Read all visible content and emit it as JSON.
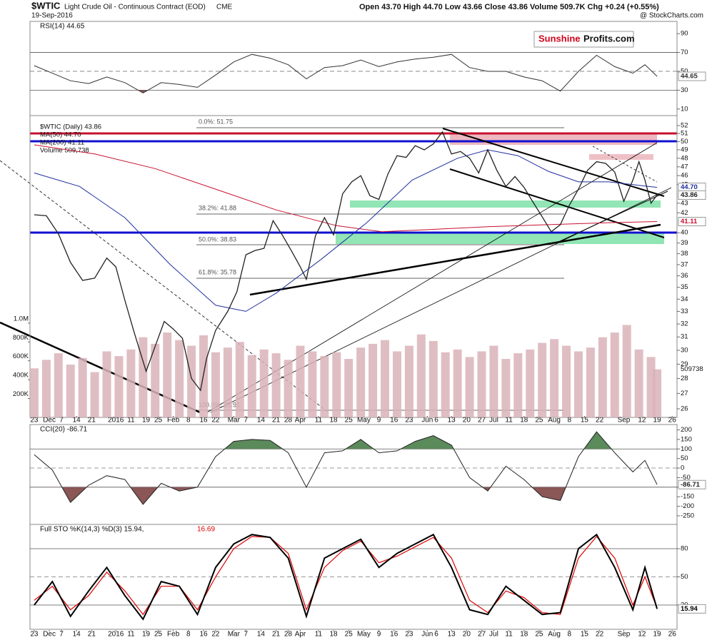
{
  "header": {
    "symbol": "$WTIC",
    "title": "Light Crude Oil - Continuous Contract (EOD)",
    "exchange": "CME",
    "date": "19-Sep-2016",
    "quote": "Open 43.70 High 44.70 Low 43.66 Close 43.86 Volume 509.7K Chg +0.24 (+0.55%)",
    "credit": "@ StockCharts.com",
    "logo": [
      "Sunshine",
      "Profits.com"
    ],
    "annotations": [
      "0.0%: 51.75",
      "38.2%: 41.88",
      "50.0%: 38.83",
      "61.8%: 35.78",
      "100.0%: 25.91"
    ]
  },
  "chart_data": [
    {
      "type": "line",
      "title": "RSI(14) 44.65",
      "ylim": [
        3,
        103
      ],
      "yticks": [
        10,
        30,
        50,
        70,
        90
      ],
      "levels": [
        70,
        30
      ],
      "center": 50,
      "shade_below": "#8a5656",
      "series": [
        {
          "name": "RSI(14)",
          "color": "#333333",
          "width": 1,
          "last_label": "44.65",
          "x": [
            0,
            6,
            12,
            18,
            24,
            30,
            36,
            42,
            48,
            54,
            60,
            66,
            72,
            78,
            84,
            90,
            96,
            102,
            108,
            114,
            120,
            126,
            132,
            138,
            144,
            150,
            156,
            162,
            168,
            174,
            180,
            186,
            192,
            198,
            202,
            206
          ],
          "values": [
            56,
            48,
            40,
            37,
            44,
            38,
            27,
            38,
            36,
            33,
            46,
            60,
            68,
            64,
            57,
            42,
            54,
            56,
            62,
            55,
            60,
            63,
            65,
            68,
            54,
            50,
            50,
            44,
            40,
            29,
            50,
            67,
            55,
            48,
            57,
            44.65
          ]
        }
      ]
    },
    {
      "type": "line",
      "log": true,
      "ylim": [
        25.46,
        53.28
      ],
      "yticks": [
        26,
        27,
        28,
        29,
        30,
        31,
        32,
        33,
        34,
        35,
        36,
        37,
        38,
        39,
        40,
        42,
        43,
        45,
        46,
        47,
        48,
        49,
        50,
        51,
        52
      ],
      "y2lim": [
        0,
        3200000
      ],
      "y2ticks": [
        {
          "value": 200000,
          "label": "200K"
        },
        {
          "value": 400000,
          "label": "400K"
        },
        {
          "value": 600000,
          "label": "600K"
        },
        {
          "value": 800000,
          "label": "800K"
        },
        {
          "value": 1000000,
          "label": "1.0M"
        }
      ],
      "xlim": [
        -1.4,
        212.6
      ],
      "xticks": [
        {
          "value": 0,
          "label": "23"
        },
        {
          "value": 5,
          "label": "Dec"
        },
        {
          "value": 9,
          "label": "7"
        },
        {
          "value": 14,
          "label": "14"
        },
        {
          "value": 19,
          "label": "21"
        },
        {
          "value": 27,
          "label": "2016"
        },
        {
          "value": 32,
          "label": "11"
        },
        {
          "value": 37,
          "label": "19"
        },
        {
          "value": 41,
          "label": "25"
        },
        {
          "value": 46,
          "label": "Feb"
        },
        {
          "value": 51,
          "label": "8"
        },
        {
          "value": 56,
          "label": "16"
        },
        {
          "value": 60,
          "label": "22"
        },
        {
          "value": 66,
          "label": "Mar"
        },
        {
          "value": 70,
          "label": "7"
        },
        {
          "value": 75,
          "label": "14"
        },
        {
          "value": 80,
          "label": "21"
        },
        {
          "value": 84,
          "label": "28"
        },
        {
          "value": 88,
          "label": "Apr"
        },
        {
          "value": 94,
          "label": "11"
        },
        {
          "value": 99,
          "label": "18"
        },
        {
          "value": 104,
          "label": "25"
        },
        {
          "value": 109,
          "label": "May"
        },
        {
          "value": 114,
          "label": "9"
        },
        {
          "value": 119,
          "label": "16"
        },
        {
          "value": 124,
          "label": "23"
        },
        {
          "value": 130,
          "label": "Jun"
        },
        {
          "value": 133,
          "label": "6"
        },
        {
          "value": 138,
          "label": "13"
        },
        {
          "value": 143,
          "label": "20"
        },
        {
          "value": 148,
          "label": "27"
        },
        {
          "value": 152,
          "label": "Jul"
        },
        {
          "value": 157,
          "label": "11"
        },
        {
          "value": 162,
          "label": "18"
        },
        {
          "value": 167,
          "label": "25"
        },
        {
          "value": 172,
          "label": "Aug"
        },
        {
          "value": 177,
          "label": "8"
        },
        {
          "value": 182,
          "label": "15"
        },
        {
          "value": 187,
          "label": "22"
        },
        {
          "value": 195,
          "label": "Sep"
        },
        {
          "value": 201,
          "label": "12"
        },
        {
          "value": 206,
          "label": "19"
        },
        {
          "value": 211,
          "label": "26"
        }
      ],
      "series": [
        {
          "name": "Volume 509,738",
          "type": "bar",
          "axis": "y2",
          "color": "#d9b3b8",
          "last_label": "509738",
          "x": [
            0,
            4,
            8,
            12,
            16,
            20,
            24,
            28,
            32,
            36,
            40,
            44,
            48,
            52,
            56,
            60,
            64,
            68,
            72,
            76,
            80,
            84,
            88,
            92,
            96,
            100,
            104,
            108,
            112,
            116,
            120,
            124,
            128,
            132,
            136,
            140,
            144,
            148,
            152,
            156,
            160,
            164,
            168,
            172,
            176,
            180,
            184,
            188,
            192,
            196,
            200,
            204,
            206
          ],
          "values": [
            520000,
            610000,
            680000,
            560000,
            630000,
            480000,
            700000,
            650000,
            720000,
            850000,
            780000,
            900000,
            820000,
            760000,
            870000,
            690000,
            740000,
            800000,
            660000,
            720000,
            680000,
            610000,
            760000,
            700000,
            650000,
            690000,
            620000,
            740000,
            780000,
            820000,
            700000,
            760000,
            880000,
            810000,
            690000,
            720000,
            640000,
            700000,
            760000,
            620000,
            680000,
            720000,
            790000,
            830000,
            760000,
            700000,
            740000,
            850000,
            900000,
            980000,
            720000,
            640000,
            509738
          ]
        },
        {
          "name": "MA(200) 41.11",
          "color": "#c8102e",
          "width": 1,
          "last_label": "41.11",
          "x": [
            0,
            20,
            40,
            60,
            80,
            100,
            115,
            130,
            150,
            170,
            190,
            206
          ],
          "values": [
            49.6,
            48.5,
            46.8,
            44.5,
            42.3,
            40.7,
            40.1,
            40.3,
            40.6,
            40.8,
            41.0,
            41.11
          ]
        },
        {
          "name": "MA(50) 44.70",
          "color": "#1f2f9e",
          "width": 1,
          "last_label": "44.70",
          "x": [
            0,
            15,
            30,
            45,
            60,
            70,
            80,
            95,
            110,
            125,
            140,
            150,
            160,
            170,
            180,
            190,
            206
          ],
          "values": [
            46.3,
            44.8,
            41.5,
            37.0,
            33.5,
            33.0,
            34.5,
            37.5,
            41.0,
            45.5,
            48.0,
            49.0,
            48.3,
            46.5,
            45.3,
            45.3,
            44.7
          ]
        },
        {
          "name": "$WTIC (Daily) 43.86",
          "color": "#222222",
          "width": 1.3,
          "last_label": "43.86",
          "x": [
            0,
            4,
            8,
            12,
            16,
            20,
            24,
            27,
            30,
            33,
            37,
            40,
            43,
            46,
            49,
            52,
            55,
            57,
            60,
            64,
            67,
            70,
            73,
            76,
            79,
            82,
            85,
            88,
            90,
            93,
            96,
            99,
            102,
            105,
            108,
            111,
            114,
            117,
            120,
            123,
            126,
            129,
            132,
            135,
            138,
            141,
            144,
            147,
            150,
            153,
            156,
            159,
            162,
            165,
            168,
            171,
            174,
            177,
            180,
            183,
            186,
            189,
            192,
            195,
            198,
            200,
            202,
            204,
            206
          ],
          "values": [
            41.8,
            41.7,
            39.9,
            37.2,
            35.6,
            35.8,
            37.6,
            36.8,
            33.9,
            31.4,
            28.5,
            30.3,
            32.2,
            31.6,
            30.9,
            28.0,
            27.2,
            29.4,
            31.5,
            33.0,
            34.6,
            37.9,
            38.3,
            38.5,
            41.2,
            39.8,
            38.3,
            36.8,
            35.7,
            39.7,
            41.5,
            39.8,
            44.0,
            45.3,
            46.0,
            43.8,
            43.4,
            46.2,
            48.3,
            48.1,
            49.5,
            49.0,
            49.7,
            51.2,
            48.5,
            48.8,
            48.0,
            46.3,
            49.0,
            46.6,
            44.8,
            45.9,
            44.7,
            43.1,
            41.6,
            40.1,
            40.8,
            42.8,
            44.5,
            46.6,
            47.6,
            47.4,
            46.4,
            43.2,
            45.5,
            47.6,
            45.5,
            43.0,
            43.86
          ]
        }
      ]
    },
    {
      "type": "line",
      "title": "CCI(20) -86.71",
      "ylim": [
        -295,
        228
      ],
      "yticks": [
        -250,
        -200,
        -150,
        -100,
        -50,
        0,
        50,
        100,
        150,
        200
      ],
      "levels": [
        100,
        -100
      ],
      "center": 0,
      "shade_above": "#5b8a5b",
      "shade_below": "#8a5656",
      "series": [
        {
          "name": "CCI(20)",
          "color": "#222222",
          "width": 1,
          "last_label": "-86.71",
          "x": [
            0,
            6,
            12,
            18,
            24,
            30,
            36,
            42,
            48,
            54,
            60,
            66,
            72,
            78,
            84,
            90,
            96,
            102,
            108,
            114,
            120,
            126,
            132,
            138,
            144,
            150,
            156,
            162,
            168,
            174,
            180,
            186,
            192,
            198,
            202,
            206
          ],
          "values": [
            70,
            -10,
            -180,
            -90,
            -40,
            -60,
            -190,
            -80,
            -120,
            -100,
            60,
            140,
            150,
            145,
            80,
            -100,
            80,
            90,
            150,
            80,
            90,
            140,
            170,
            120,
            -50,
            -120,
            10,
            -60,
            -150,
            -170,
            60,
            190,
            80,
            -20,
            40,
            -86.71
          ]
        }
      ]
    },
    {
      "type": "line",
      "title": "Full STO %K(14,3) %D(3) 15.94,",
      "title_2": "16.69",
      "ylim": [
        -5.8,
        105.8
      ],
      "yticks": [
        20,
        50,
        80
      ],
      "levels": [
        80,
        20
      ],
      "center": 50,
      "series": [
        {
          "name": "%D(3)",
          "color": "#e00000",
          "width": 1.2,
          "x": [
            0,
            6,
            12,
            18,
            24,
            30,
            36,
            42,
            48,
            54,
            60,
            66,
            72,
            78,
            84,
            90,
            96,
            102,
            108,
            114,
            120,
            126,
            132,
            138,
            144,
            150,
            156,
            162,
            168,
            174,
            180,
            186,
            192,
            198,
            202,
            206
          ],
          "values": [
            25,
            40,
            15,
            30,
            55,
            35,
            10,
            40,
            40,
            15,
            50,
            80,
            93,
            92,
            75,
            15,
            60,
            78,
            88,
            65,
            72,
            82,
            92,
            70,
            25,
            12,
            35,
            28,
            12,
            10,
            70,
            93,
            70,
            20,
            50,
            16.69
          ]
        },
        {
          "name": "%K(14,3)",
          "color": "#000000",
          "width": 2,
          "last_label": "15.94",
          "x": [
            0,
            6,
            12,
            18,
            24,
            30,
            36,
            42,
            48,
            54,
            60,
            66,
            72,
            78,
            84,
            90,
            96,
            102,
            108,
            114,
            120,
            126,
            132,
            138,
            144,
            150,
            156,
            162,
            168,
            174,
            180,
            186,
            192,
            198,
            202,
            206
          ],
          "values": [
            20,
            45,
            8,
            35,
            60,
            30,
            5,
            45,
            40,
            10,
            60,
            85,
            95,
            92,
            70,
            8,
            70,
            80,
            90,
            60,
            75,
            85,
            95,
            60,
            15,
            10,
            40,
            25,
            10,
            12,
            80,
            95,
            60,
            15,
            60,
            15.94
          ]
        }
      ]
    }
  ]
}
